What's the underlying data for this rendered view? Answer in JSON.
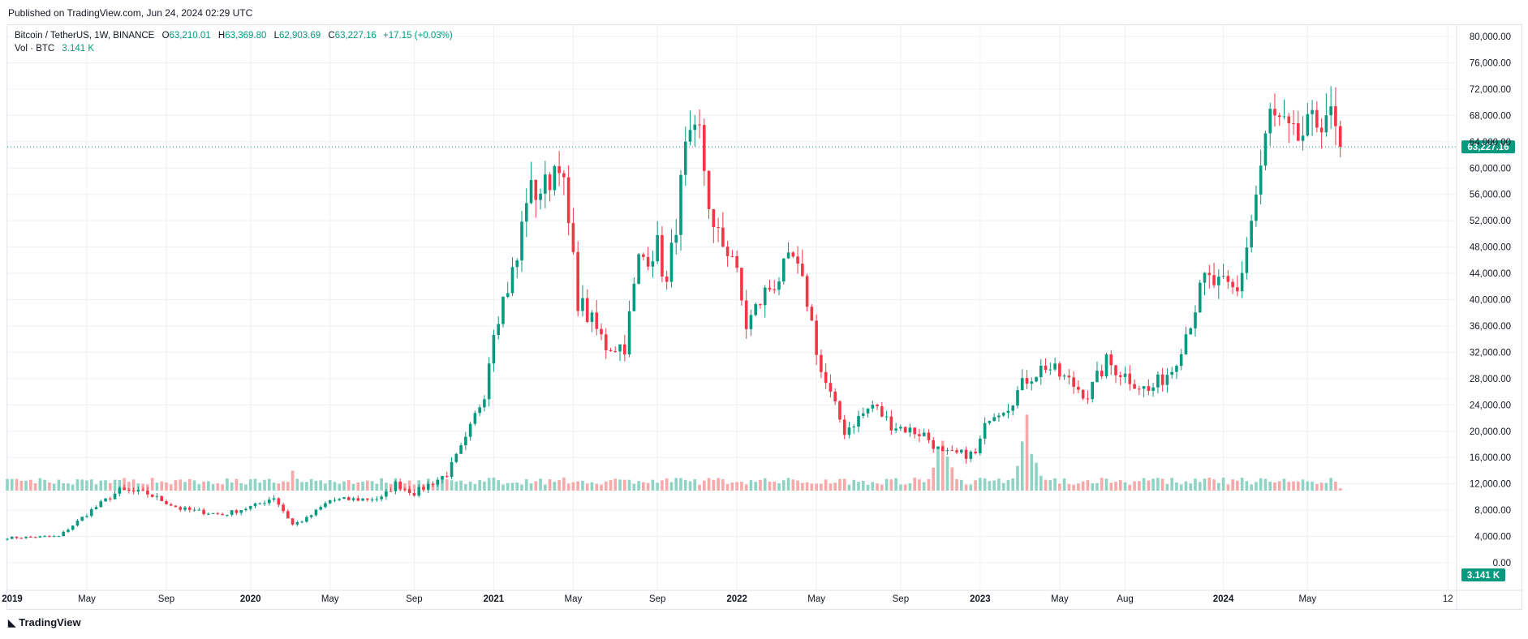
{
  "header": {
    "published": "Published on TradingView.com, Jun 24, 2024 02:29 UTC"
  },
  "legend": {
    "symbol": "Bitcoin / TetherUS, 1W, BINANCE",
    "o_label": "O",
    "o": "63,210.01",
    "h_label": "H",
    "h": "63,369.80",
    "l_label": "L",
    "l": "62,903.69",
    "c_label": "C",
    "c": "63,227.16",
    "change": "+17.15 (+0.03%)",
    "vol_label": "Vol · BTC",
    "vol": "3.141 K"
  },
  "footer": {
    "brand": "TradingView"
  },
  "colors": {
    "up": "#089981",
    "down": "#f23645",
    "vol_up": "#8fd3c5",
    "vol_down": "#f7a9a9",
    "grid": "#eef0f4",
    "last": "#089981"
  },
  "chart_data": {
    "type": "candlestick",
    "title": "Bitcoin / TetherUS, 1W, BINANCE",
    "price_axis_ticks": [
      "80,000.00",
      "76,000.00",
      "72,000.00",
      "68,000.00",
      "64,000.00",
      "60,000.00",
      "56,000.00",
      "52,000.00",
      "48,000.00",
      "44,000.00",
      "40,000.00",
      "36,000.00",
      "32,000.00",
      "28,000.00",
      "24,000.00",
      "20,000.00",
      "16,000.00",
      "12,000.00",
      "8,000.00",
      "4,000.00",
      "0.00"
    ],
    "ylim": [
      0,
      80000
    ],
    "time_axis_labels": [
      "2019",
      "May",
      "Sep",
      "2020",
      "May",
      "Sep",
      "2021",
      "May",
      "Sep",
      "2022",
      "May",
      "Sep",
      "2023",
      "May",
      "Aug",
      "2024",
      "May",
      "12"
    ],
    "last_price_label": "63,227.16",
    "last_price": 63227.16,
    "last_volume_label": "3.141 K",
    "weekly_close_anchors": [
      [
        "2019-01-07",
        3800
      ],
      [
        "2019-03-25",
        4000
      ],
      [
        "2019-05-13",
        8000
      ],
      [
        "2019-06-24",
        11000
      ],
      [
        "2019-08-05",
        10500
      ],
      [
        "2019-09-23",
        8200
      ],
      [
        "2019-11-25",
        7300
      ],
      [
        "2020-01-13",
        8700
      ],
      [
        "2020-02-10",
        10000
      ],
      [
        "2020-03-09",
        5800
      ],
      [
        "2020-03-30",
        6700
      ],
      [
        "2020-05-04",
        9500
      ],
      [
        "2020-07-20",
        9800
      ],
      [
        "2020-08-10",
        12000
      ],
      [
        "2020-09-07",
        10600
      ],
      [
        "2020-10-26",
        13500
      ],
      [
        "2020-11-23",
        18500
      ],
      [
        "2020-12-21",
        26000
      ],
      [
        "2021-01-04",
        36000
      ],
      [
        "2021-02-08",
        46000
      ],
      [
        "2021-02-22",
        56000
      ],
      [
        "2021-03-22",
        57000
      ],
      [
        "2021-04-12",
        62000
      ],
      [
        "2021-05-10",
        40000
      ],
      [
        "2021-06-21",
        33000
      ],
      [
        "2021-07-19",
        33000
      ],
      [
        "2021-08-09",
        46000
      ],
      [
        "2021-09-06",
        48000
      ],
      [
        "2021-09-20",
        42000
      ],
      [
        "2021-10-18",
        62000
      ],
      [
        "2021-11-08",
        65000
      ],
      [
        "2021-11-29",
        50000
      ],
      [
        "2021-12-27",
        47000
      ],
      [
        "2022-01-17",
        36000
      ],
      [
        "2022-02-14",
        41000
      ],
      [
        "2022-03-28",
        46000
      ],
      [
        "2022-04-18",
        40000
      ],
      [
        "2022-05-09",
        29000
      ],
      [
        "2022-06-13",
        20000
      ],
      [
        "2022-07-25",
        24000
      ],
      [
        "2022-08-22",
        21000
      ],
      [
        "2022-10-10",
        19500
      ],
      [
        "2022-11-07",
        16500
      ],
      [
        "2022-12-26",
        16500
      ],
      [
        "2023-01-16",
        22500
      ],
      [
        "2023-02-13",
        24000
      ],
      [
        "2023-03-13",
        28000
      ],
      [
        "2023-04-10",
        30000
      ],
      [
        "2023-06-12",
        25500
      ],
      [
        "2023-07-10",
        30500
      ],
      [
        "2023-09-11",
        26000
      ],
      [
        "2023-10-16",
        29500
      ],
      [
        "2023-11-06",
        35000
      ],
      [
        "2023-12-04",
        43000
      ],
      [
        "2024-01-22",
        41000
      ],
      [
        "2024-02-12",
        52000
      ],
      [
        "2024-03-11",
        68000
      ],
      [
        "2024-04-15",
        64000
      ],
      [
        "2024-05-13",
        66000
      ],
      [
        "2024-06-03",
        69000
      ],
      [
        "2024-06-24",
        63227.16
      ]
    ],
    "notable_volume_spikes_k": [
      [
        "2020-03-09",
        32
      ],
      [
        "2022-11-07",
        111
      ],
      [
        "2023-03-13",
        130
      ]
    ],
    "grid": true
  }
}
